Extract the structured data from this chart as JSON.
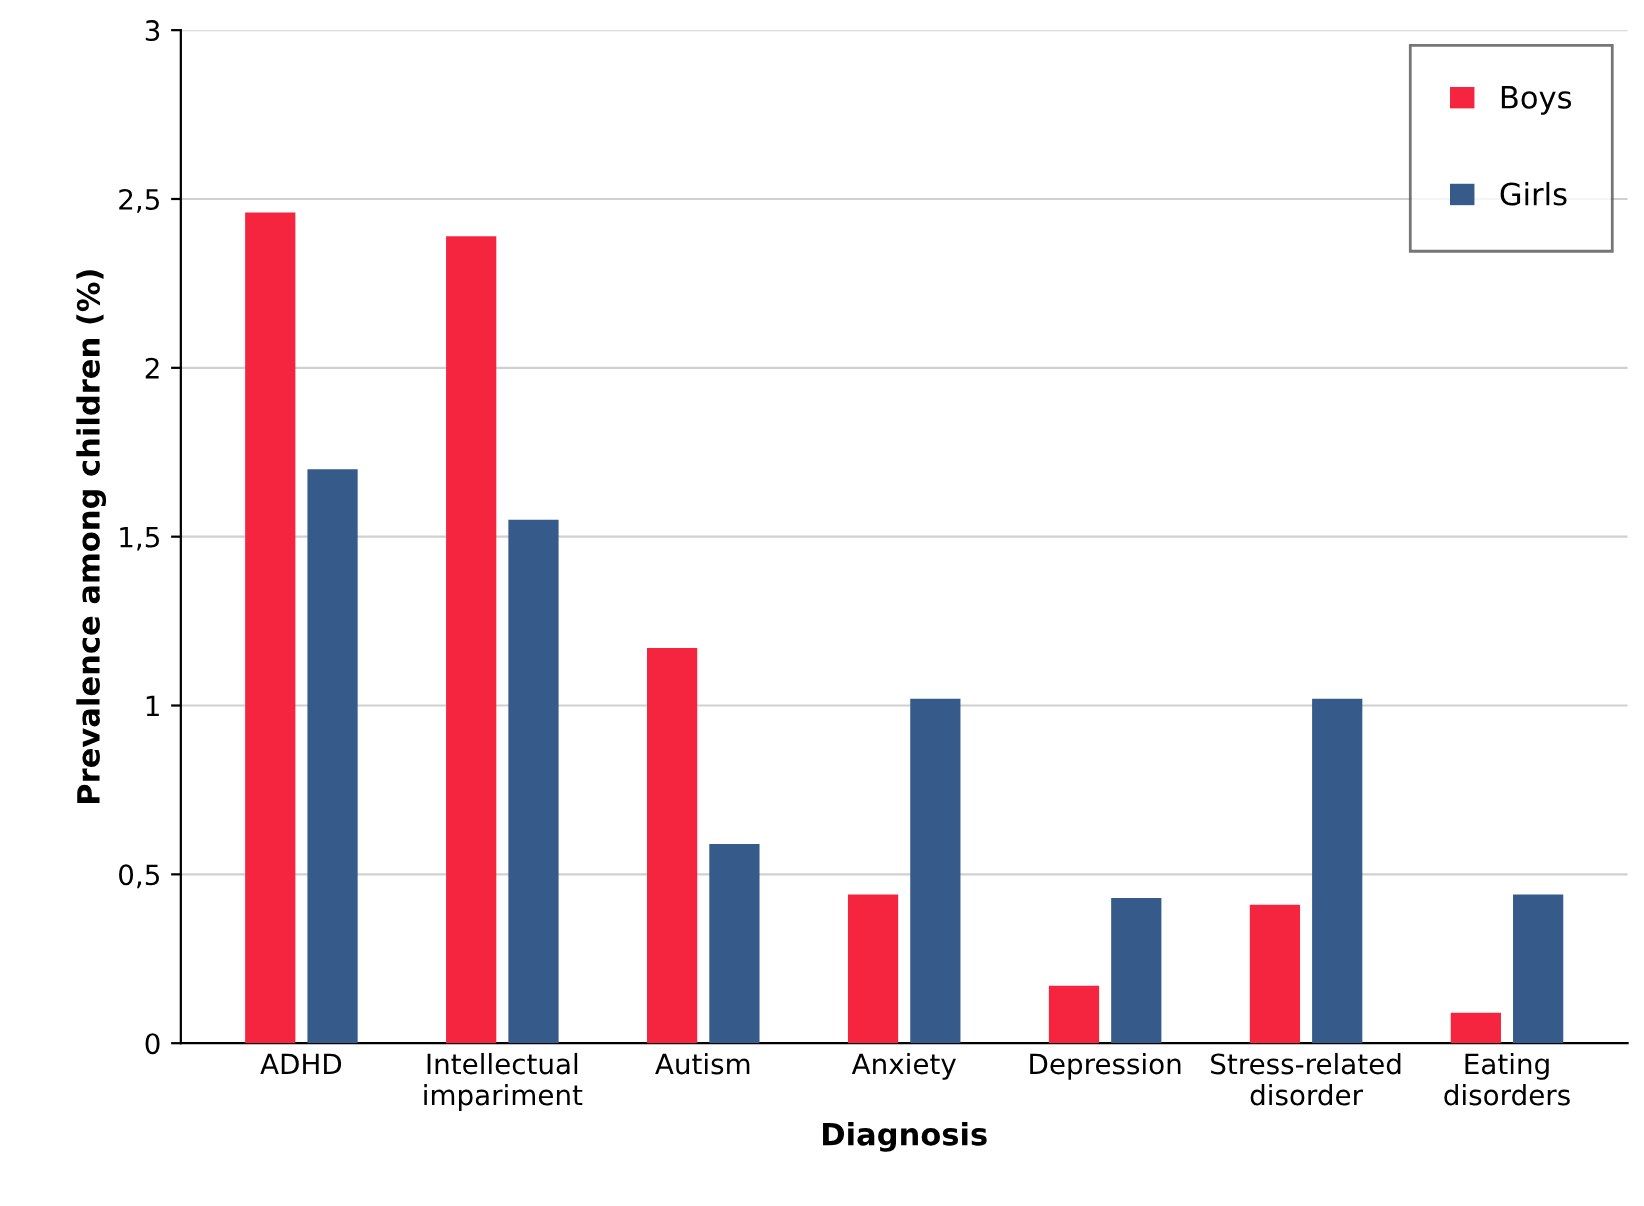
{
  "chart_data": {
    "type": "bar",
    "xlabel": "Diagnosis",
    "ylabel": "Prevalence among children (%)",
    "categories": [
      "ADHD",
      "Intellectual\nimpariment",
      "Autism",
      "Anxiety",
      "Depression",
      "Stress-related\ndisorder",
      "Eating\ndisorders"
    ],
    "series": [
      {
        "name": "Boys",
        "color": "#f5253f",
        "values": [
          2.46,
          2.39,
          1.17,
          0.44,
          0.17,
          0.41,
          0.09
        ]
      },
      {
        "name": "Girls",
        "color": "#365a8a",
        "values": [
          1.7,
          1.55,
          0.59,
          1.02,
          0.43,
          1.02,
          0.44
        ]
      }
    ],
    "ylim": [
      0,
      3
    ],
    "yticks": [
      0,
      {
        "value": 0.5,
        "label": "0,5"
      },
      1,
      {
        "value": 1.5,
        "label": "1,5"
      },
      2,
      {
        "value": 2.5,
        "label": "2,5"
      },
      3
    ],
    "grid": "y",
    "legend": "top right"
  }
}
